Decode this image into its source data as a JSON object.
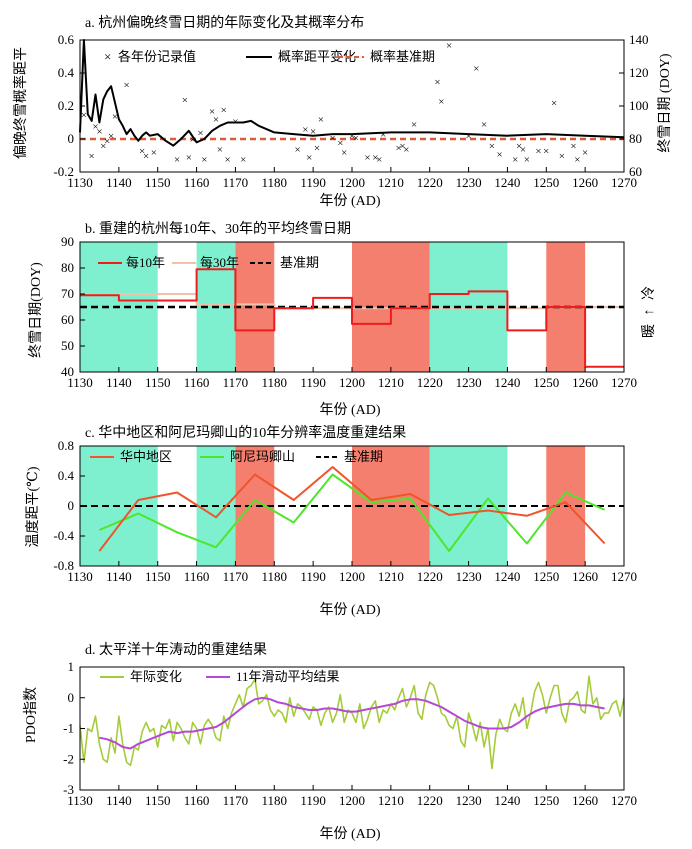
{
  "chart_data": [
    {
      "type": "scatter+line",
      "title": "a. 杭州偏晚终雪日期的年际变化及其概率分布",
      "xlabel": "年份 (AD)",
      "ylabel": "偏晚终雪概率距平",
      "y2label": "终雪日期 (DOY)",
      "xlim": [
        1130,
        1270
      ],
      "ylim": [
        -0.2,
        0.6
      ],
      "y2lim": [
        60,
        140
      ],
      "xticks": [
        "1130",
        "1140",
        "1150",
        "1160",
        "1170",
        "1180",
        "1190",
        "1200",
        "1210",
        "1220",
        "1230",
        "1240",
        "1250",
        "1260",
        "1270"
      ],
      "yticks": [
        "-0.2",
        "0",
        "0.2",
        "0.4",
        "0.6"
      ],
      "y2ticks": [
        "60",
        "80",
        "100",
        "120",
        "140"
      ],
      "legend": [
        "各年份记录值",
        "概率距平变化",
        "概率基准期"
      ],
      "records_doy": [
        [
          1131,
          95
        ],
        [
          1133,
          70
        ],
        [
          1134,
          88
        ],
        [
          1135,
          85
        ],
        [
          1136,
          76
        ],
        [
          1137,
          79
        ],
        [
          1138,
          82
        ],
        [
          1139,
          94
        ],
        [
          1142,
          113
        ],
        [
          1146,
          73
        ],
        [
          1147,
          70
        ],
        [
          1149,
          72
        ],
        [
          1155,
          68
        ],
        [
          1157,
          104
        ],
        [
          1158,
          69
        ],
        [
          1159,
          80
        ],
        [
          1161,
          84
        ],
        [
          1162,
          68
        ],
        [
          1164,
          97
        ],
        [
          1165,
          92
        ],
        [
          1166,
          74
        ],
        [
          1167,
          98
        ],
        [
          1168,
          68
        ],
        [
          1170,
          91
        ],
        [
          1172,
          68
        ],
        [
          1186,
          74
        ],
        [
          1188,
          86
        ],
        [
          1189,
          69
        ],
        [
          1190,
          85
        ],
        [
          1191,
          75
        ],
        [
          1192,
          92
        ],
        [
          1195,
          81
        ],
        [
          1197,
          78
        ],
        [
          1198,
          72
        ],
        [
          1200,
          82
        ],
        [
          1201,
          81
        ],
        [
          1204,
          69
        ],
        [
          1206,
          69
        ],
        [
          1207,
          68
        ],
        [
          1208,
          83
        ],
        [
          1212,
          75
        ],
        [
          1213,
          76
        ],
        [
          1214,
          74
        ],
        [
          1216,
          89
        ],
        [
          1222,
          115
        ],
        [
          1223,
          103
        ],
        [
          1225,
          137
        ],
        [
          1230,
          82
        ],
        [
          1232,
          123
        ],
        [
          1234,
          89
        ],
        [
          1236,
          76
        ],
        [
          1238,
          71
        ],
        [
          1242,
          68
        ],
        [
          1243,
          76
        ],
        [
          1244,
          74
        ],
        [
          1245,
          68
        ],
        [
          1248,
          73
        ],
        [
          1250,
          73
        ],
        [
          1252,
          102
        ],
        [
          1254,
          70
        ],
        [
          1257,
          76
        ],
        [
          1258,
          68
        ],
        [
          1260,
          72
        ]
      ],
      "series": [
        {
          "name": "概率距平变化",
          "x": [
            1130,
            1131,
            1132,
            1133,
            1134,
            1135,
            1136,
            1137,
            1138,
            1139,
            1140,
            1141,
            1142,
            1143,
            1144,
            1145,
            1146,
            1147,
            1148,
            1150,
            1152,
            1154,
            1156,
            1158,
            1160,
            1162,
            1164,
            1166,
            1168,
            1170,
            1172,
            1174,
            1176,
            1180,
            1185,
            1190,
            1195,
            1200,
            1210,
            1220,
            1230,
            1240,
            1250,
            1260,
            1270
          ],
          "y": [
            0.04,
            0.6,
            0.15,
            0.11,
            0.27,
            0.1,
            0.24,
            0.29,
            0.32,
            0.22,
            0.12,
            0.08,
            0.03,
            0.06,
            0.02,
            -0.01,
            0.02,
            0.04,
            0.02,
            0.03,
            -0.01,
            -0.04,
            0.0,
            0.05,
            -0.02,
            0.0,
            0.05,
            0.08,
            0.1,
            0.1,
            0.1,
            0.11,
            0.08,
            0.04,
            0.03,
            0.02,
            0.03,
            0.03,
            0.04,
            0.04,
            0.03,
            0.02,
            0.03,
            0.02,
            0.01
          ]
        },
        {
          "name": "概率基准期",
          "y": 0.0
        }
      ]
    },
    {
      "type": "step",
      "title": "b. 重建的杭州每10年、30年的平均终雪日期",
      "xlabel": "年份 (AD)",
      "ylabel": "终雪日期(DOY)",
      "xlim": [
        1130,
        1270
      ],
      "ylim": [
        40,
        90
      ],
      "xticks": [
        "1130",
        "1140",
        "1150",
        "1160",
        "1170",
        "1180",
        "1190",
        "1200",
        "1210",
        "1220",
        "1230",
        "1240",
        "1250",
        "1260",
        "1270"
      ],
      "yticks": [
        "40",
        "50",
        "60",
        "70",
        "80",
        "90"
      ],
      "legend": [
        "每10年",
        "每30年",
        "基准期"
      ],
      "side_label_top": "冷",
      "side_label_bottom": "暖",
      "side_arrow": "↑",
      "decades": [
        1130,
        1140,
        1150,
        1160,
        1170,
        1180,
        1190,
        1200,
        1210,
        1220,
        1230,
        1240,
        1250,
        1260,
        1270
      ],
      "series": [
        {
          "name": "每10年",
          "values": [
            69.5,
            67.5,
            67.5,
            79.5,
            56,
            64.5,
            68.5,
            58.5,
            64.5,
            70,
            71,
            56,
            65,
            42
          ]
        },
        {
          "name": "每30年",
          "x": [
            1130,
            1160,
            1160,
            1180,
            1180,
            1250,
            1250,
            1270
          ],
          "y": [
            70,
            70,
            66,
            66,
            64.5,
            64.5,
            65,
            65
          ]
        },
        {
          "name": "基准期",
          "y": 65
        }
      ],
      "warm_bands": [
        [
          1130,
          1150
        ],
        [
          1160,
          1170
        ],
        [
          1220,
          1240
        ]
      ],
      "cold_bands": [
        [
          1170,
          1180
        ],
        [
          1200,
          1220
        ],
        [
          1250,
          1260
        ]
      ]
    },
    {
      "type": "line",
      "title": "c. 华中地区和阿尼玛卿山的10年分辨率温度重建结果",
      "xlabel": "年份 (AD)",
      "ylabel": "温度距平(℃)",
      "xlim": [
        1130,
        1270
      ],
      "ylim": [
        -0.8,
        0.8
      ],
      "xticks": [
        "1130",
        "1140",
        "1150",
        "1160",
        "1170",
        "1180",
        "1190",
        "1200",
        "1210",
        "1220",
        "1230",
        "1240",
        "1250",
        "1260",
        "1270"
      ],
      "yticks": [
        "-0.8",
        "-0.4",
        "0",
        "0.4",
        "0.8"
      ],
      "legend": [
        "华中地区",
        "阿尼玛卿山",
        "基准期"
      ],
      "series": [
        {
          "name": "华中地区",
          "x": [
            1135,
            1145,
            1155,
            1165,
            1175,
            1185,
            1195,
            1205,
            1215,
            1225,
            1235,
            1245,
            1255,
            1265
          ],
          "y": [
            -0.6,
            0.08,
            0.18,
            -0.15,
            0.42,
            0.08,
            0.52,
            0.08,
            0.16,
            -0.12,
            -0.06,
            -0.13,
            0.05,
            -0.5
          ]
        },
        {
          "name": "阿尼玛卿山",
          "x": [
            1135,
            1145,
            1155,
            1165,
            1175,
            1185,
            1195,
            1205,
            1215,
            1225,
            1235,
            1245,
            1255,
            1265
          ],
          "y": [
            -0.32,
            -0.1,
            -0.35,
            -0.55,
            0.08,
            -0.22,
            0.42,
            0.05,
            0.1,
            -0.6,
            0.1,
            -0.5,
            0.18,
            -0.05
          ]
        },
        {
          "name": "基准期",
          "y": 0
        }
      ],
      "warm_bands": [
        [
          1130,
          1150
        ],
        [
          1160,
          1170
        ],
        [
          1220,
          1240
        ]
      ],
      "cold_bands": [
        [
          1170,
          1180
        ],
        [
          1200,
          1220
        ],
        [
          1250,
          1260
        ]
      ]
    },
    {
      "type": "line",
      "title": "d. 太平洋十年涛动的重建结果",
      "xlabel": "年份 (AD)",
      "ylabel": "PDO指数",
      "xlim": [
        1130,
        1270
      ],
      "ylim": [
        -3,
        1
      ],
      "xticks": [
        "1130",
        "1140",
        "1150",
        "1160",
        "1170",
        "1180",
        "1190",
        "1200",
        "1210",
        "1220",
        "1230",
        "1240",
        "1250",
        "1260",
        "1270"
      ],
      "yticks": [
        "-3",
        "-2",
        "-1",
        "0",
        "1"
      ],
      "legend": [
        "年际变化",
        "11年滑动平均结果"
      ],
      "series": [
        {
          "name": "年际变化",
          "x": [
            1130,
            1131,
            1132,
            1133,
            1134,
            1135,
            1136,
            1137,
            1138,
            1139,
            1140,
            1141,
            1142,
            1143,
            1144,
            1145,
            1146,
            1147,
            1148,
            1149,
            1150,
            1151,
            1152,
            1153,
            1154,
            1155,
            1156,
            1157,
            1158,
            1159,
            1160,
            1161,
            1162,
            1163,
            1164,
            1165,
            1166,
            1167,
            1168,
            1169,
            1170,
            1171,
            1172,
            1173,
            1174,
            1175,
            1176,
            1177,
            1178,
            1179,
            1180,
            1181,
            1182,
            1183,
            1184,
            1185,
            1186,
            1187,
            1188,
            1189,
            1190,
            1191,
            1192,
            1193,
            1194,
            1195,
            1196,
            1197,
            1198,
            1199,
            1200,
            1201,
            1202,
            1203,
            1204,
            1205,
            1206,
            1207,
            1208,
            1209,
            1210,
            1211,
            1212,
            1213,
            1214,
            1215,
            1216,
            1217,
            1218,
            1219,
            1220,
            1221,
            1222,
            1223,
            1224,
            1225,
            1226,
            1227,
            1228,
            1229,
            1230,
            1231,
            1232,
            1233,
            1234,
            1235,
            1236,
            1237,
            1238,
            1239,
            1240,
            1241,
            1242,
            1243,
            1244,
            1245,
            1246,
            1247,
            1248,
            1249,
            1250,
            1251,
            1252,
            1253,
            1254,
            1255,
            1256,
            1257,
            1258,
            1259,
            1260,
            1261,
            1262,
            1263,
            1264,
            1265,
            1266,
            1267,
            1268,
            1269,
            1270
          ],
          "y": [
            -0.9,
            -2.1,
            -1.0,
            -1.1,
            -0.6,
            -1.5,
            -2.0,
            -2.1,
            -1.3,
            -1.8,
            -0.6,
            -1.5,
            -2.1,
            -2.2,
            -1.6,
            -1.7,
            -1.1,
            -0.8,
            -1.1,
            -1.0,
            -1.6,
            -0.9,
            -1.0,
            -0.7,
            -1.4,
            -0.8,
            -1.0,
            -1.3,
            -1.5,
            -0.8,
            -1.0,
            -1.5,
            -0.9,
            -0.7,
            -0.9,
            -1.3,
            -1.4,
            -0.6,
            -1.0,
            -0.5,
            -0.2,
            0.1,
            -0.3,
            0.3,
            0.4,
            0.6,
            -0.2,
            -0.1,
            0.1,
            -0.4,
            -0.6,
            -0.4,
            -0.5,
            -0.8,
            0.0,
            -0.6,
            -0.2,
            -0.3,
            -0.5,
            -0.7,
            -0.3,
            -0.4,
            -0.9,
            -0.5,
            -0.3,
            -0.8,
            -0.5,
            0.1,
            -0.8,
            -0.4,
            -0.5,
            -0.8,
            -0.2,
            -1.0,
            -0.7,
            -0.3,
            -0.1,
            -0.8,
            -0.4,
            -0.5,
            -0.2,
            -0.4,
            0.0,
            0.3,
            -0.3,
            0.0,
            0.4,
            -0.5,
            -0.7,
            0.1,
            0.5,
            0.4,
            0.0,
            -0.5,
            -0.6,
            -0.9,
            -1.0,
            -0.6,
            -1.4,
            -1.6,
            -0.5,
            -0.9,
            -1.4,
            -0.8,
            -1.6,
            -1.0,
            -2.3,
            -1.2,
            -0.7,
            -1.0,
            -1.1,
            -0.5,
            -0.2,
            -0.6,
            0.0,
            -1.0,
            -0.5,
            0.2,
            0.5,
            0.1,
            -0.5,
            0.0,
            0.4,
            0.4,
            -0.5,
            -0.8,
            -0.1,
            0.0,
            0.2,
            -0.4,
            -0.5,
            0.7,
            -0.2,
            0.0,
            -0.7,
            -0.5,
            -0.5,
            -0.2,
            -0.1,
            -0.6,
            0.0
          ]
        },
        {
          "name": "11年滑动平均结果",
          "x": [
            1135,
            1137,
            1139,
            1141,
            1143,
            1145,
            1147,
            1149,
            1151,
            1153,
            1155,
            1157,
            1159,
            1161,
            1163,
            1165,
            1167,
            1169,
            1171,
            1173,
            1175,
            1177,
            1179,
            1181,
            1183,
            1185,
            1187,
            1189,
            1191,
            1193,
            1195,
            1197,
            1199,
            1201,
            1203,
            1205,
            1207,
            1209,
            1211,
            1213,
            1215,
            1217,
            1219,
            1221,
            1223,
            1225,
            1227,
            1229,
            1231,
            1233,
            1235,
            1237,
            1239,
            1241,
            1243,
            1245,
            1247,
            1249,
            1251,
            1253,
            1255,
            1257,
            1259,
            1261,
            1263,
            1265
          ],
          "y": [
            -1.3,
            -1.35,
            -1.45,
            -1.6,
            -1.65,
            -1.5,
            -1.4,
            -1.3,
            -1.2,
            -1.1,
            -1.15,
            -1.1,
            -1.1,
            -1.05,
            -1.0,
            -0.95,
            -0.8,
            -0.6,
            -0.4,
            -0.2,
            -0.05,
            0.0,
            -0.05,
            -0.15,
            -0.2,
            -0.3,
            -0.35,
            -0.4,
            -0.4,
            -0.35,
            -0.35,
            -0.4,
            -0.45,
            -0.45,
            -0.4,
            -0.35,
            -0.3,
            -0.25,
            -0.2,
            -0.1,
            -0.05,
            -0.05,
            -0.1,
            -0.2,
            -0.3,
            -0.45,
            -0.6,
            -0.75,
            -0.85,
            -0.95,
            -1.0,
            -1.0,
            -1.0,
            -0.95,
            -0.8,
            -0.6,
            -0.45,
            -0.35,
            -0.3,
            -0.25,
            -0.2,
            -0.2,
            -0.25,
            -0.25,
            -0.3,
            -0.35
          ]
        }
      ]
    }
  ]
}
